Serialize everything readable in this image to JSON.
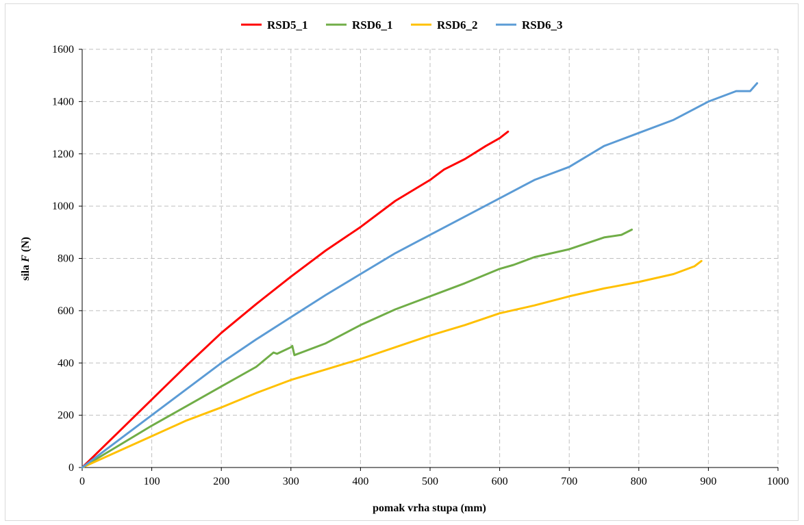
{
  "chart_data": {
    "type": "line",
    "xlabel": "pomak vrha stupa (mm)",
    "ylabel_prefix": "sila ",
    "ylabel_italic": "F",
    "ylabel_suffix": " (N)",
    "xlim": [
      0,
      1000
    ],
    "ylim": [
      0,
      1600
    ],
    "x_ticks": [
      0,
      100,
      200,
      300,
      400,
      500,
      600,
      700,
      800,
      900,
      1000
    ],
    "y_ticks": [
      0,
      200,
      400,
      600,
      800,
      1000,
      1200,
      1400,
      1600
    ],
    "grid": true,
    "grid_style": "dashed",
    "legend_position": "top",
    "series": [
      {
        "name": "RSD5_1",
        "color": "#ff0000",
        "points": [
          [
            0,
            0
          ],
          [
            50,
            130
          ],
          [
            100,
            260
          ],
          [
            150,
            390
          ],
          [
            200,
            515
          ],
          [
            250,
            625
          ],
          [
            300,
            730
          ],
          [
            350,
            830
          ],
          [
            400,
            920
          ],
          [
            450,
            1020
          ],
          [
            500,
            1100
          ],
          [
            520,
            1140
          ],
          [
            550,
            1180
          ],
          [
            580,
            1230
          ],
          [
            600,
            1260
          ],
          [
            612,
            1285
          ]
        ]
      },
      {
        "name": "RSD6_1",
        "color": "#70ad47",
        "points": [
          [
            0,
            0
          ],
          [
            50,
            80
          ],
          [
            100,
            160
          ],
          [
            150,
            235
          ],
          [
            200,
            310
          ],
          [
            250,
            385
          ],
          [
            275,
            440
          ],
          [
            280,
            435
          ],
          [
            300,
            460
          ],
          [
            302,
            465
          ],
          [
            305,
            430
          ],
          [
            320,
            445
          ],
          [
            350,
            475
          ],
          [
            400,
            545
          ],
          [
            450,
            605
          ],
          [
            500,
            655
          ],
          [
            550,
            705
          ],
          [
            600,
            760
          ],
          [
            620,
            775
          ],
          [
            650,
            805
          ],
          [
            700,
            835
          ],
          [
            750,
            880
          ],
          [
            775,
            890
          ],
          [
            790,
            910
          ]
        ]
      },
      {
        "name": "RSD6_2",
        "color": "#ffc000",
        "points": [
          [
            0,
            0
          ],
          [
            50,
            60
          ],
          [
            100,
            120
          ],
          [
            150,
            180
          ],
          [
            200,
            230
          ],
          [
            250,
            285
          ],
          [
            300,
            335
          ],
          [
            350,
            375
          ],
          [
            400,
            415
          ],
          [
            450,
            460
          ],
          [
            500,
            505
          ],
          [
            550,
            545
          ],
          [
            600,
            590
          ],
          [
            650,
            620
          ],
          [
            700,
            655
          ],
          [
            750,
            685
          ],
          [
            800,
            710
          ],
          [
            850,
            740
          ],
          [
            880,
            770
          ],
          [
            890,
            790
          ]
        ]
      },
      {
        "name": "RSD6_3",
        "color": "#5b9bd5",
        "points": [
          [
            0,
            0
          ],
          [
            50,
            100
          ],
          [
            100,
            200
          ],
          [
            150,
            300
          ],
          [
            200,
            400
          ],
          [
            250,
            490
          ],
          [
            300,
            575
          ],
          [
            350,
            660
          ],
          [
            400,
            740
          ],
          [
            450,
            820
          ],
          [
            500,
            890
          ],
          [
            550,
            960
          ],
          [
            600,
            1030
          ],
          [
            650,
            1100
          ],
          [
            700,
            1150
          ],
          [
            750,
            1230
          ],
          [
            800,
            1280
          ],
          [
            850,
            1330
          ],
          [
            900,
            1400
          ],
          [
            940,
            1440
          ],
          [
            960,
            1440
          ],
          [
            970,
            1470
          ]
        ]
      }
    ]
  }
}
